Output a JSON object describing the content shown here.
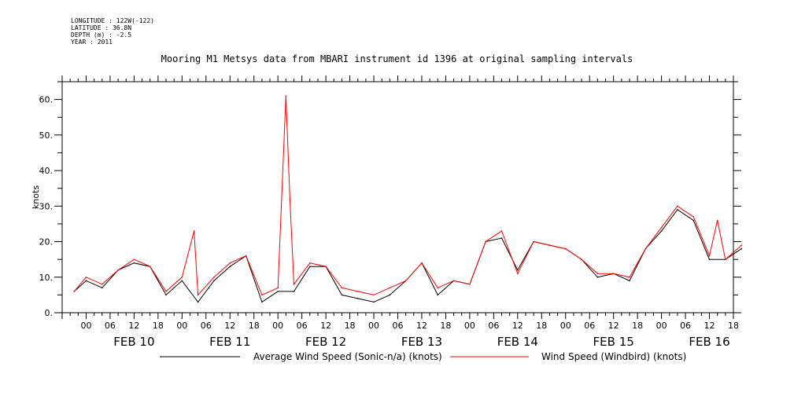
{
  "header": {
    "longitude": "LONGITUDE : 122W(-122)",
    "latitude": "LATITUDE : 36.8N",
    "depth": "DEPTH (m) : -2.5",
    "year": "YEAR : 2011"
  },
  "chart_data": {
    "type": "line",
    "title": "Mooring M1 Metsys data from MBARI instrument id 1396 at original sampling intervals",
    "ylabel": "knots",
    "xlabel": "",
    "ylim": [
      0,
      65
    ],
    "yticks": [
      0,
      10,
      20,
      30,
      40,
      50,
      60
    ],
    "ytick_labels": [
      "0.",
      "10.",
      "20.",
      "30.",
      "40.",
      "50.",
      "60."
    ],
    "xlim_hours": [
      -6,
      162
    ],
    "hour_tick_labels": [
      "00",
      "06",
      "12",
      "18",
      "00",
      "06",
      "12",
      "18",
      "00",
      "06",
      "12",
      "18",
      "00",
      "06",
      "12",
      "18",
      "00",
      "06",
      "12",
      "18",
      "00",
      "06",
      "12",
      "18",
      "00",
      "06",
      "12",
      "18"
    ],
    "day_labels": [
      "FEB 10",
      "FEB 11",
      "FEB 12",
      "FEB 13",
      "FEB 14",
      "FEB 15",
      "FEB 16"
    ],
    "grid": false,
    "legend_placement": "bottom",
    "series": [
      {
        "name": "Average Wind Speed (Sonic-n/a) (knots)",
        "color": "#000000",
        "x": [
          "2011-02-09 21:00",
          "2011-02-10 00:00",
          "2011-02-10 04:00",
          "2011-02-10 08:00",
          "2011-02-10 12:00",
          "2011-02-10 16:00",
          "2011-02-10 20:00",
          "2011-02-11 00:00",
          "2011-02-11 04:00",
          "2011-02-11 08:00",
          "2011-02-11 12:00",
          "2011-02-11 16:00",
          "2011-02-11 20:00",
          "2011-02-12 00:00",
          "2011-02-12 04:00",
          "2011-02-12 08:00",
          "2011-02-12 12:00",
          "2011-02-12 16:00",
          "2011-02-12 20:00",
          "2011-02-13 00:00",
          "2011-02-13 04:00",
          "2011-02-13 08:00",
          "2011-02-13 12:00",
          "2011-02-13 16:00",
          "2011-02-13 20:00",
          "2011-02-14 00:00",
          "2011-02-14 04:00",
          "2011-02-14 08:00",
          "2011-02-14 12:00",
          "2011-02-14 16:00",
          "2011-02-14 20:00",
          "2011-02-15 00:00",
          "2011-02-15 04:00",
          "2011-02-15 08:00",
          "2011-02-15 12:00",
          "2011-02-15 16:00",
          "2011-02-15 20:00",
          "2011-02-16 00:00",
          "2011-02-16 04:00",
          "2011-02-16 08:00",
          "2011-02-16 12:00",
          "2011-02-16 16:00",
          "2011-02-16 20:00"
        ],
        "values": [
          6,
          9,
          7,
          12,
          14,
          13,
          5,
          9,
          3,
          9,
          13,
          16,
          3,
          6,
          6,
          13,
          13,
          5,
          4,
          3,
          5,
          9,
          14,
          5,
          9,
          8,
          20,
          21,
          12,
          20,
          19,
          18,
          15,
          10,
          11,
          9,
          18,
          23,
          29,
          26,
          15,
          15,
          18
        ]
      },
      {
        "name": "Wind Speed (Windbird) (knots)",
        "color": "#ff0000",
        "x": [
          "2011-02-09 21:00",
          "2011-02-10 00:00",
          "2011-02-10 04:00",
          "2011-02-10 08:00",
          "2011-02-10 12:00",
          "2011-02-10 16:00",
          "2011-02-10 20:00",
          "2011-02-11 00:00",
          "2011-02-11 03:00",
          "2011-02-11 04:00",
          "2011-02-11 08:00",
          "2011-02-11 12:00",
          "2011-02-11 16:00",
          "2011-02-11 20:00",
          "2011-02-12 00:00",
          "2011-02-12 02:00",
          "2011-02-12 03:00",
          "2011-02-12 04:00",
          "2011-02-12 08:00",
          "2011-02-12 12:00",
          "2011-02-12 16:00",
          "2011-02-12 20:00",
          "2011-02-13 00:00",
          "2011-02-13 04:00",
          "2011-02-13 08:00",
          "2011-02-13 12:00",
          "2011-02-13 16:00",
          "2011-02-13 20:00",
          "2011-02-14 00:00",
          "2011-02-14 04:00",
          "2011-02-14 08:00",
          "2011-02-14 12:00",
          "2011-02-14 16:00",
          "2011-02-14 20:00",
          "2011-02-15 00:00",
          "2011-02-15 04:00",
          "2011-02-15 08:00",
          "2011-02-15 12:00",
          "2011-02-15 16:00",
          "2011-02-15 20:00",
          "2011-02-16 00:00",
          "2011-02-16 04:00",
          "2011-02-16 08:00",
          "2011-02-16 12:00",
          "2011-02-16 14:00",
          "2011-02-16 16:00",
          "2011-02-16 20:00"
        ],
        "values": [
          6,
          10,
          8,
          12,
          15,
          13,
          6,
          10,
          23,
          5,
          10,
          14,
          16,
          5,
          7,
          61,
          32,
          8,
          14,
          13,
          7,
          6,
          5,
          7,
          9,
          14,
          7,
          9,
          8,
          20,
          23,
          11,
          20,
          19,
          18,
          15,
          11,
          11,
          10,
          18,
          24,
          30,
          27,
          16,
          26,
          15,
          19
        ]
      }
    ]
  }
}
